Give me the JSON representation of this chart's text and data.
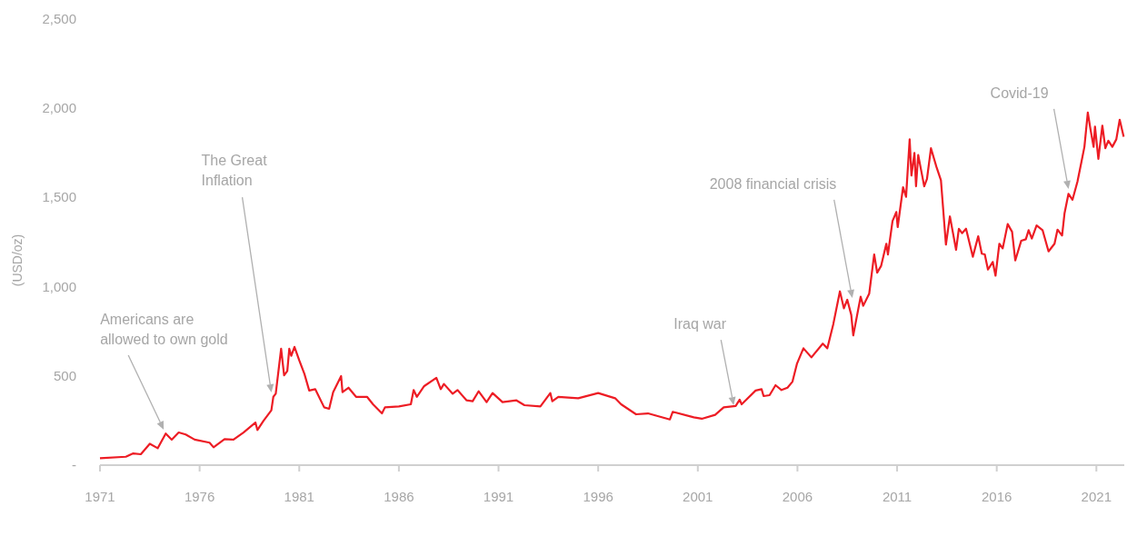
{
  "chart_data": {
    "type": "line",
    "ylabel": "(USD/oz)",
    "xlim": [
      1971,
      2022.4
    ],
    "xticks": [
      1971,
      1976,
      1981,
      1986,
      1991,
      1996,
      2001,
      2006,
      2011,
      2016,
      2021
    ],
    "ylim": [
      0,
      2500
    ],
    "yticks": [
      {
        "value": 0,
        "label": "-"
      },
      {
        "value": 500,
        "label": "500"
      },
      {
        "value": 1000,
        "label": "1,000"
      },
      {
        "value": 1500,
        "label": "1,500"
      },
      {
        "value": 2000,
        "label": "2,000"
      },
      {
        "value": 2500,
        "label": "2,500"
      }
    ],
    "grid": false,
    "marker": "none",
    "line_style": "solid",
    "series": [
      {
        "color": "#ed1c24",
        "x": [
          1971.0,
          1972.3,
          1972.67,
          1973.05,
          1973.5,
          1973.9,
          1974.3,
          1974.6,
          1974.95,
          1975.3,
          1975.75,
          1976.5,
          1976.7,
          1977.25,
          1977.7,
          1978.2,
          1978.8,
          1978.9,
          1979.2,
          1979.6,
          1979.7,
          1979.82,
          1980.09,
          1980.24,
          1980.4,
          1980.5,
          1980.6,
          1980.76,
          1981.0,
          1981.26,
          1981.5,
          1981.8,
          1982.25,
          1982.5,
          1982.7,
          1983.1,
          1983.17,
          1983.47,
          1983.85,
          1984.4,
          1984.7,
          1985.15,
          1985.3,
          1986.0,
          1986.6,
          1986.74,
          1986.9,
          1987.27,
          1987.88,
          1988.1,
          1988.26,
          1988.7,
          1988.94,
          1989.4,
          1989.7,
          1990.0,
          1990.4,
          1990.7,
          1991.2,
          1991.9,
          1992.3,
          1993.1,
          1993.6,
          1993.7,
          1994.0,
          1995.0,
          1996.0,
          1996.85,
          1997.15,
          1997.9,
          1998.5,
          1999.6,
          1999.74,
          2000.8,
          2001.2,
          2001.87,
          2002.3,
          2002.9,
          2003.1,
          2003.2,
          2003.9,
          2004.2,
          2004.3,
          2004.6,
          2004.9,
          2005.2,
          2005.5,
          2005.75,
          2005.98,
          2006.3,
          2006.7,
          2007.27,
          2007.5,
          2007.8,
          2008.13,
          2008.33,
          2008.5,
          2008.7,
          2008.8,
          2009.17,
          2009.3,
          2009.6,
          2009.85,
          2010.0,
          2010.2,
          2010.46,
          2010.54,
          2010.77,
          2010.96,
          2011.03,
          2011.3,
          2011.45,
          2011.63,
          2011.72,
          2011.87,
          2011.95,
          2012.06,
          2012.36,
          2012.5,
          2012.7,
          2012.97,
          2013.2,
          2013.45,
          2013.65,
          2013.96,
          2014.1,
          2014.26,
          2014.46,
          2014.8,
          2015.07,
          2015.25,
          2015.4,
          2015.56,
          2015.8,
          2015.94,
          2016.13,
          2016.3,
          2016.55,
          2016.77,
          2016.93,
          2017.23,
          2017.46,
          2017.6,
          2017.76,
          2018.0,
          2018.3,
          2018.6,
          2018.9,
          2019.05,
          2019.28,
          2019.4,
          2019.6,
          2019.8,
          2020.05,
          2020.25,
          2020.4,
          2020.57,
          2020.7,
          2020.86,
          2020.93,
          2021.1,
          2021.3,
          2021.45,
          2021.6,
          2021.8,
          2022.0,
          2022.17,
          2022.37
        ],
        "values": [
          39,
          47,
          66,
          61,
          120,
          95,
          177,
          143,
          183,
          172,
          143,
          126,
          100,
          146,
          143,
          183,
          239,
          197,
          248,
          307,
          383,
          400,
          652,
          503,
          528,
          652,
          613,
          663,
          587,
          511,
          418,
          426,
          324,
          316,
          409,
          499,
          409,
          434,
          383,
          383,
          341,
          290,
          324,
          329,
          341,
          421,
          383,
          443,
          489,
          426,
          455,
          400,
          421,
          363,
          358,
          414,
          353,
          404,
          353,
          363,
          336,
          329,
          404,
          358,
          383,
          375,
          404,
          375,
          341,
          285,
          290,
          256,
          299,
          268,
          260,
          282,
          324,
          332,
          367,
          341,
          418,
          426,
          387,
          392,
          448,
          421,
          434,
          468,
          570,
          655,
          604,
          681,
          655,
          791,
          974,
          879,
          927,
          842,
          727,
          944,
          893,
          961,
          1181,
          1079,
          1117,
          1241,
          1181,
          1368,
          1419,
          1334,
          1558,
          1504,
          1826,
          1623,
          1750,
          1563,
          1738,
          1563,
          1605,
          1776,
          1673,
          1597,
          1236,
          1394,
          1207,
          1325,
          1300,
          1325,
          1168,
          1283,
          1185,
          1181,
          1096,
          1139,
          1062,
          1241,
          1215,
          1351,
          1308,
          1147,
          1258,
          1266,
          1317,
          1270,
          1343,
          1317,
          1198,
          1241,
          1320,
          1287,
          1410,
          1521,
          1487,
          1589,
          1699,
          1784,
          1976,
          1885,
          1784,
          1898,
          1716,
          1903,
          1776,
          1818,
          1784,
          1826,
          1936,
          1840
        ]
      }
    ],
    "annotations": [
      {
        "text": "Americans are\nallowed to own gold",
        "x": 1974.2,
        "y": 199
      },
      {
        "text": "The Great\nInflation",
        "x": 1979.6,
        "y": 407
      },
      {
        "text": "Iraq war",
        "x": 2002.8,
        "y": 336
      },
      {
        "text": "2008 financial crisis",
        "x": 2008.75,
        "y": 937
      },
      {
        "text": "Covid-19",
        "x": 2019.6,
        "y": 1548
      }
    ]
  }
}
